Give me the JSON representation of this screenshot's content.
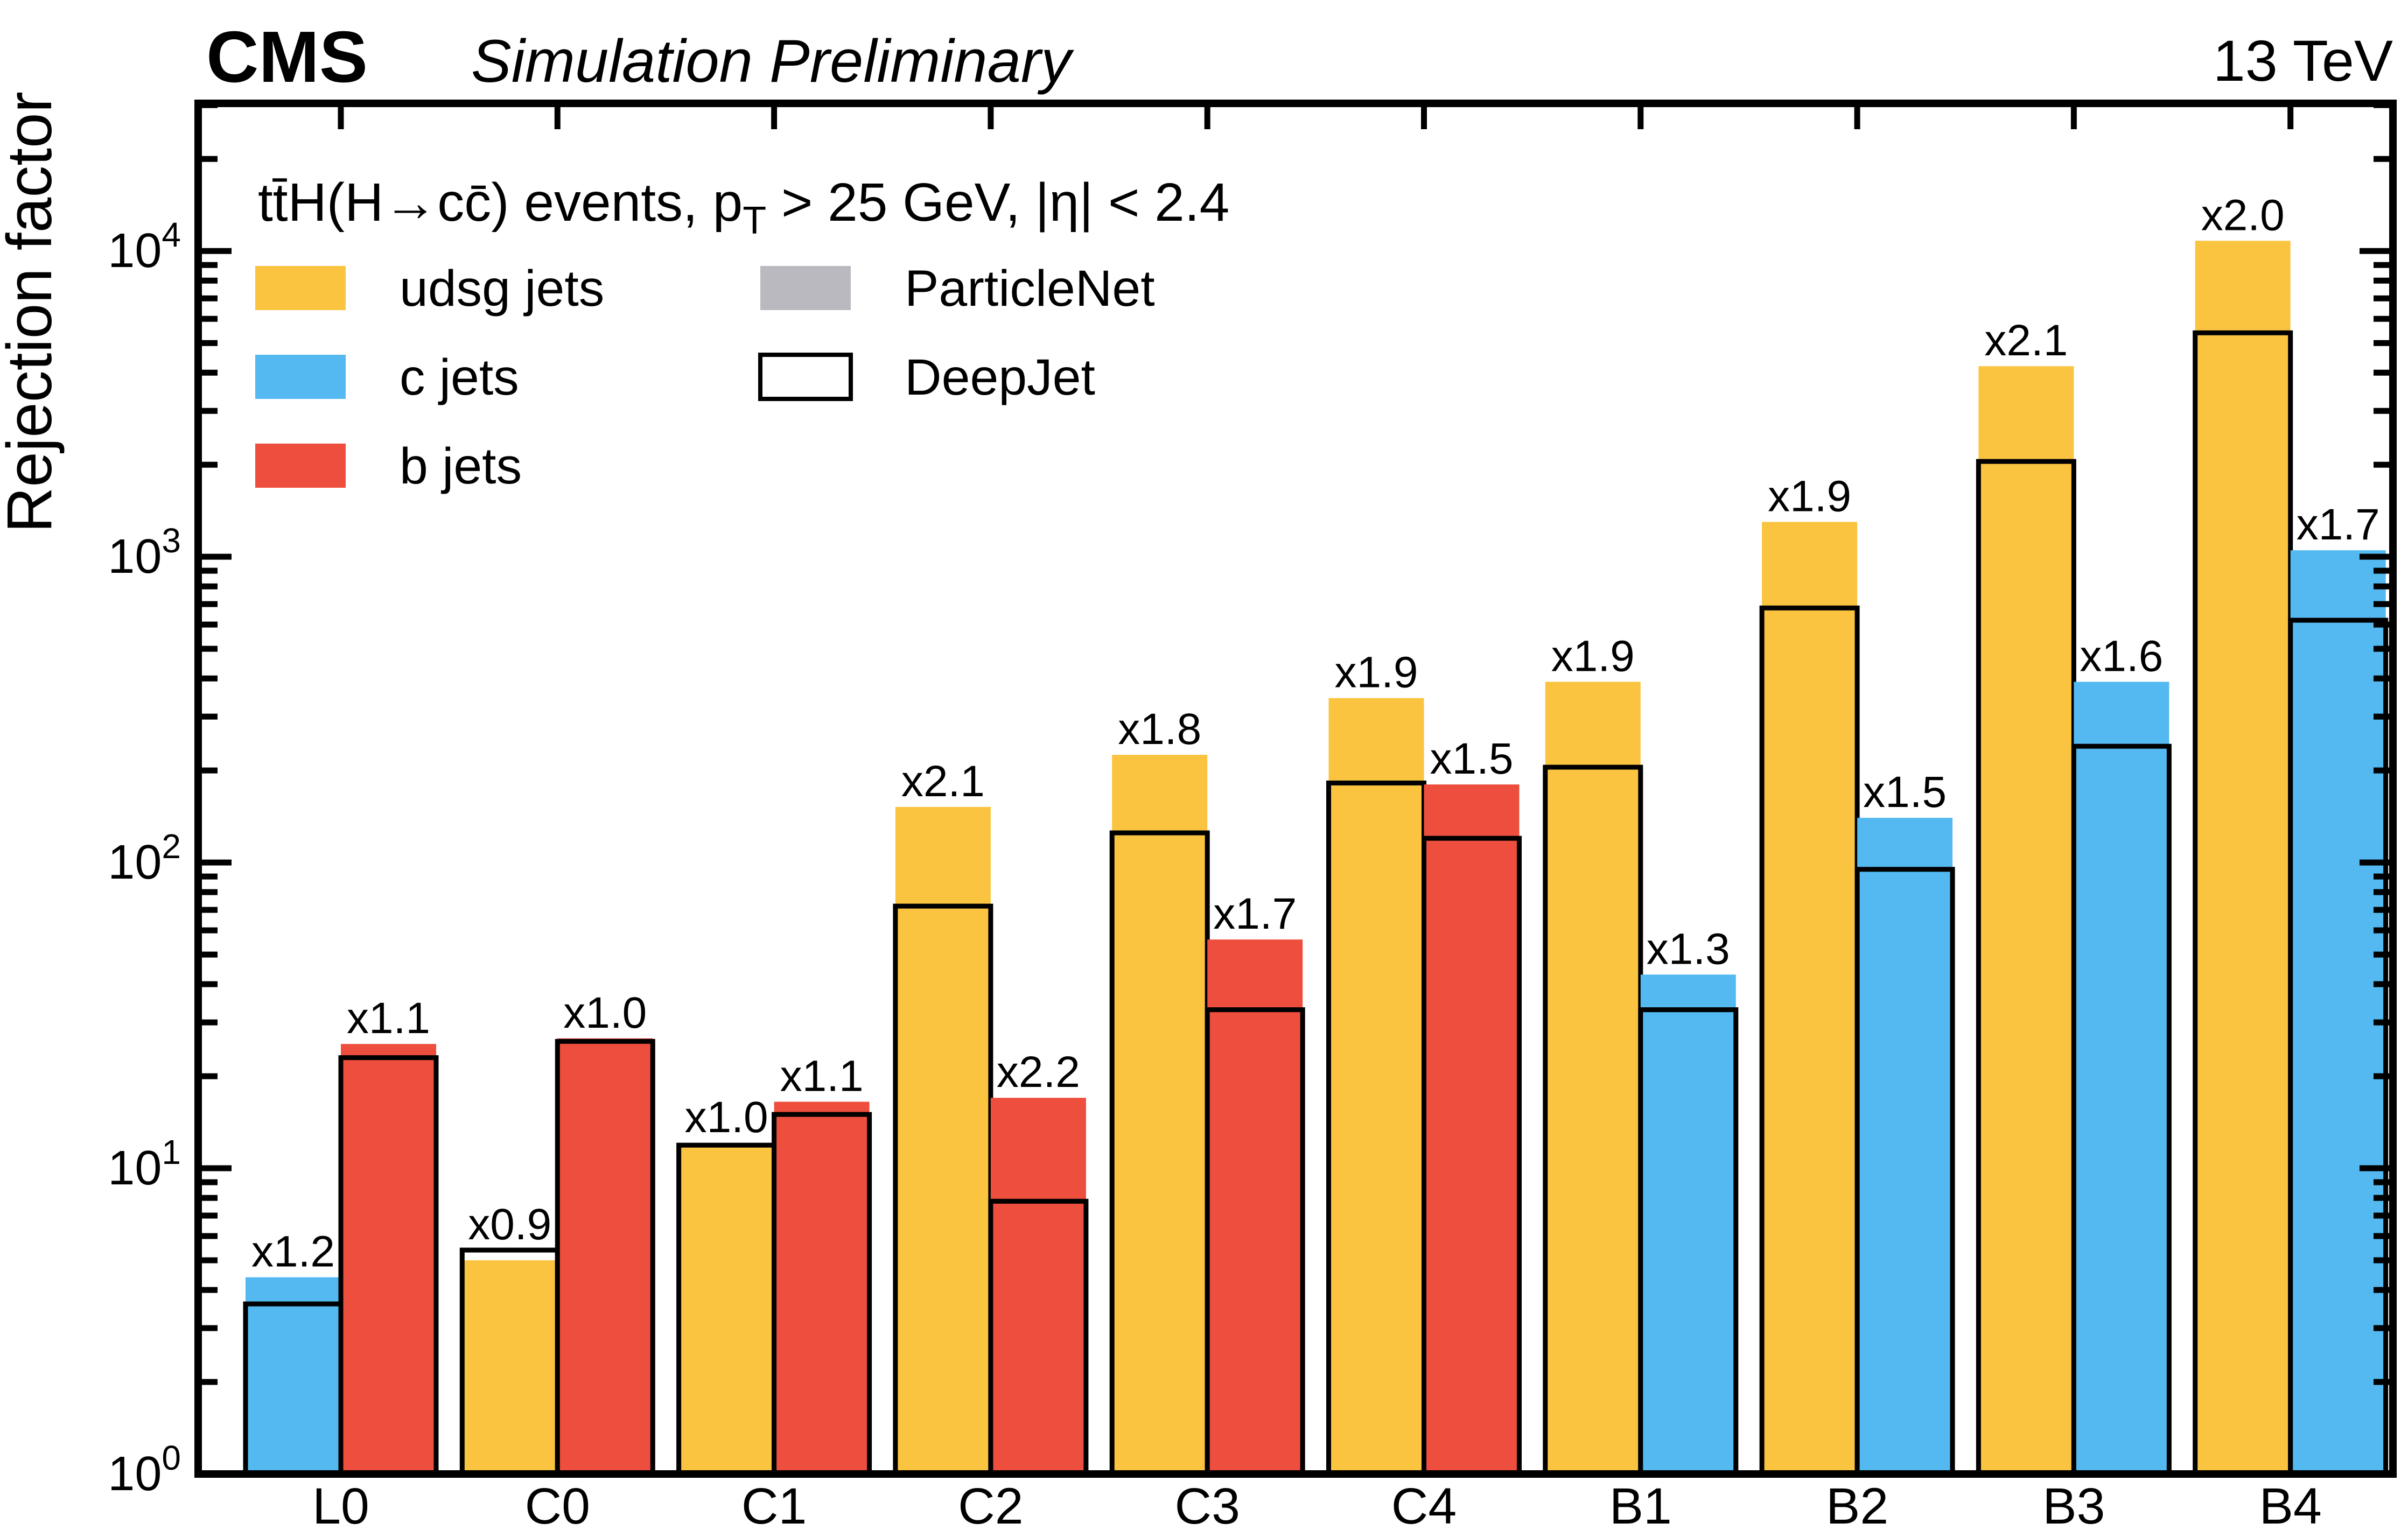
{
  "header": {
    "experiment": "CMS",
    "label": "Simulation Preliminary",
    "energy": "13 TeV"
  },
  "chart_data": {
    "type": "bar",
    "yscale": "log",
    "ylabel": "Rejection factor",
    "ylim": [
      1,
      30400
    ],
    "y_tick_exponents": [
      0,
      1,
      2,
      3,
      4
    ],
    "grid": "off",
    "legend_position": "top-left",
    "annotation": {
      "pre": "tt̄H(H→cc̄) events, p",
      "sub": "T",
      "post": " > 25 GeV, |η| < 2.4"
    },
    "legend_flavors": [
      {
        "label": "udsg jets",
        "color": "#FBC440"
      },
      {
        "label": "c jets",
        "color": "#53B9F0"
      },
      {
        "label": "b jets",
        "color": "#EE4E3D"
      }
    ],
    "legend_models": [
      {
        "label": "ParticleNet",
        "style": "filled",
        "color": "#B9B9BF"
      },
      {
        "label": "DeepJet",
        "style": "open",
        "color": "#000000"
      }
    ],
    "flavor_colors": {
      "udsg": "#FBC440",
      "c": "#53B9F0",
      "b": "#EE4E3D"
    },
    "categories": [
      "L0",
      "C0",
      "C1",
      "C2",
      "C3",
      "C4",
      "B1",
      "B2",
      "B3",
      "B4"
    ],
    "groups": [
      {
        "category": "L0",
        "bars": [
          {
            "flavor": "c",
            "deepjet": 3.6,
            "particlenet": 4.4,
            "ratio_label": "x1.2"
          },
          {
            "flavor": "b",
            "deepjet": 23,
            "particlenet": 25.5,
            "ratio_label": "x1.1"
          }
        ]
      },
      {
        "category": "C0",
        "bars": [
          {
            "flavor": "udsg",
            "deepjet": 5.4,
            "particlenet": 5.0,
            "ratio_label": "x0.9"
          },
          {
            "flavor": "b",
            "deepjet": 26,
            "particlenet": 26.6,
            "ratio_label": "x1.0"
          }
        ]
      },
      {
        "category": "C1",
        "bars": [
          {
            "flavor": "udsg",
            "deepjet": 11.9,
            "particlenet": 12.1,
            "ratio_label": "x1.0"
          },
          {
            "flavor": "b",
            "deepjet": 15,
            "particlenet": 16.5,
            "ratio_label": "x1.1"
          }
        ]
      },
      {
        "category": "C2",
        "bars": [
          {
            "flavor": "udsg",
            "deepjet": 72,
            "particlenet": 152,
            "ratio_label": "x2.1"
          },
          {
            "flavor": "b",
            "deepjet": 7.8,
            "particlenet": 17,
            "ratio_label": "x2.2"
          }
        ]
      },
      {
        "category": "C3",
        "bars": [
          {
            "flavor": "udsg",
            "deepjet": 125,
            "particlenet": 225,
            "ratio_label": "x1.8"
          },
          {
            "flavor": "b",
            "deepjet": 33,
            "particlenet": 56,
            "ratio_label": "x1.7"
          }
        ]
      },
      {
        "category": "C4",
        "bars": [
          {
            "flavor": "udsg",
            "deepjet": 182,
            "particlenet": 345,
            "ratio_label": "x1.9"
          },
          {
            "flavor": "b",
            "deepjet": 120,
            "particlenet": 180,
            "ratio_label": "x1.5"
          }
        ]
      },
      {
        "category": "B1",
        "bars": [
          {
            "flavor": "udsg",
            "deepjet": 205,
            "particlenet": 390,
            "ratio_label": "x1.9"
          },
          {
            "flavor": "c",
            "deepjet": 33,
            "particlenet": 43,
            "ratio_label": "x1.3"
          }
        ]
      },
      {
        "category": "B2",
        "bars": [
          {
            "flavor": "udsg",
            "deepjet": 680,
            "particlenet": 1300,
            "ratio_label": "x1.9"
          },
          {
            "flavor": "c",
            "deepjet": 95,
            "particlenet": 140,
            "ratio_label": "x1.5"
          }
        ]
      },
      {
        "category": "B3",
        "bars": [
          {
            "flavor": "udsg",
            "deepjet": 2050,
            "particlenet": 4200,
            "ratio_label": "x2.1"
          },
          {
            "flavor": "c",
            "deepjet": 240,
            "particlenet": 390,
            "ratio_label": "x1.6"
          }
        ]
      },
      {
        "category": "B4",
        "bars": [
          {
            "flavor": "udsg",
            "deepjet": 5400,
            "particlenet": 10800,
            "ratio_label": "x2.0"
          },
          {
            "flavor": "c",
            "deepjet": 620,
            "particlenet": 1050,
            "ratio_label": "x1.7"
          }
        ]
      }
    ]
  }
}
